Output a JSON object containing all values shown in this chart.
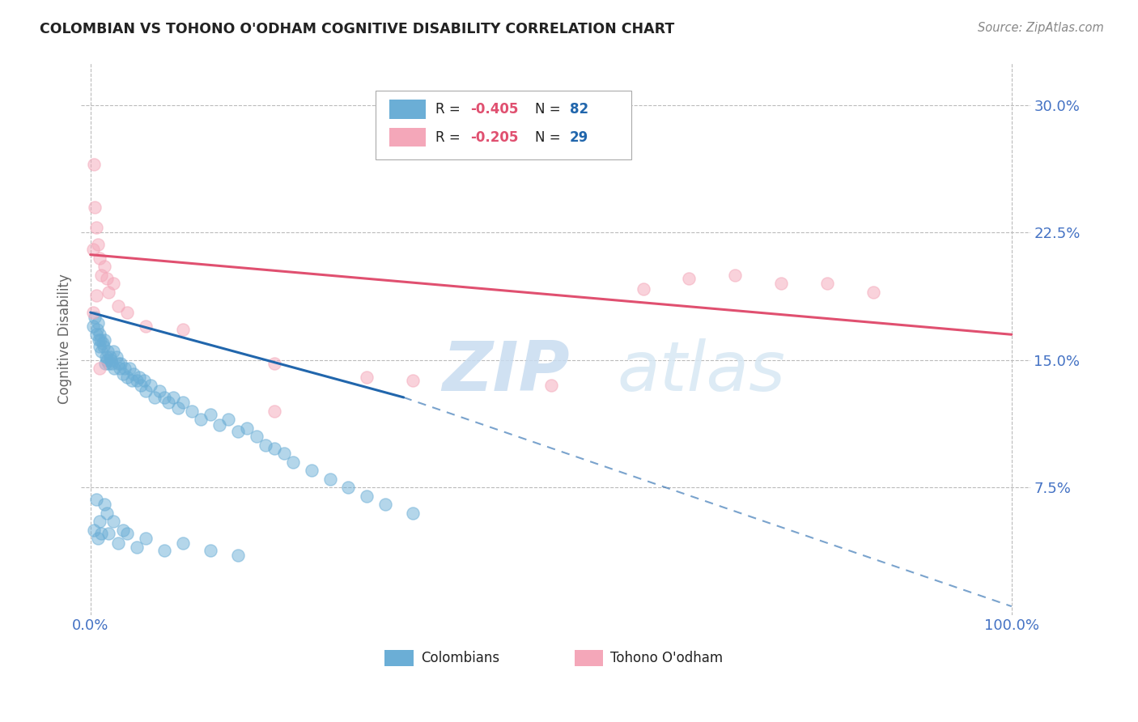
{
  "title": "COLOMBIAN VS TOHONO O'ODHAM COGNITIVE DISABILITY CORRELATION CHART",
  "source": "Source: ZipAtlas.com",
  "ylabel": "Cognitive Disability",
  "x_tick_labels": [
    "0.0%",
    "100.0%"
  ],
  "y_ticks": [
    0.075,
    0.15,
    0.225,
    0.3
  ],
  "y_tick_labels": [
    "7.5%",
    "15.0%",
    "22.5%",
    "30.0%"
  ],
  "blue_color": "#6BAED6",
  "pink_color": "#F4A7B9",
  "trend_blue": "#2166AC",
  "trend_pink": "#E05070",
  "background": "#FFFFFF",
  "grid_color": "#BBBBBB",
  "title_color": "#222222",
  "axis_label_color": "#4472C4",
  "r1": "-0.405",
  "n1": "82",
  "r2": "-0.205",
  "n2": "29",
  "r_color": "#E05070",
  "n_color": "#2166AC",
  "blue_x": [
    0.003,
    0.005,
    0.006,
    0.007,
    0.008,
    0.009,
    0.01,
    0.01,
    0.011,
    0.012,
    0.013,
    0.014,
    0.015,
    0.016,
    0.017,
    0.018,
    0.019,
    0.02,
    0.021,
    0.022,
    0.023,
    0.025,
    0.026,
    0.028,
    0.03,
    0.032,
    0.033,
    0.035,
    0.037,
    0.04,
    0.042,
    0.045,
    0.047,
    0.05,
    0.053,
    0.055,
    0.058,
    0.06,
    0.065,
    0.07,
    0.075,
    0.08,
    0.085,
    0.09,
    0.095,
    0.1,
    0.11,
    0.12,
    0.13,
    0.14,
    0.15,
    0.16,
    0.17,
    0.18,
    0.19,
    0.2,
    0.21,
    0.22,
    0.24,
    0.26,
    0.28,
    0.3,
    0.32,
    0.35,
    0.004,
    0.006,
    0.008,
    0.01,
    0.012,
    0.015,
    0.018,
    0.02,
    0.025,
    0.03,
    0.035,
    0.04,
    0.05,
    0.06,
    0.08,
    0.1,
    0.13,
    0.16
  ],
  "blue_y": [
    0.17,
    0.175,
    0.165,
    0.168,
    0.172,
    0.162,
    0.158,
    0.165,
    0.162,
    0.155,
    0.16,
    0.158,
    0.162,
    0.148,
    0.152,
    0.15,
    0.155,
    0.148,
    0.152,
    0.15,
    0.148,
    0.155,
    0.145,
    0.152,
    0.148,
    0.145,
    0.148,
    0.142,
    0.145,
    0.14,
    0.145,
    0.138,
    0.142,
    0.138,
    0.14,
    0.135,
    0.138,
    0.132,
    0.135,
    0.128,
    0.132,
    0.128,
    0.125,
    0.128,
    0.122,
    0.125,
    0.12,
    0.115,
    0.118,
    0.112,
    0.115,
    0.108,
    0.11,
    0.105,
    0.1,
    0.098,
    0.095,
    0.09,
    0.085,
    0.08,
    0.075,
    0.07,
    0.065,
    0.06,
    0.05,
    0.068,
    0.045,
    0.055,
    0.048,
    0.065,
    0.06,
    0.048,
    0.055,
    0.042,
    0.05,
    0.048,
    0.04,
    0.045,
    0.038,
    0.042,
    0.038,
    0.035
  ],
  "pink_x": [
    0.003,
    0.004,
    0.005,
    0.006,
    0.008,
    0.01,
    0.012,
    0.015,
    0.018,
    0.02,
    0.025,
    0.03,
    0.04,
    0.06,
    0.1,
    0.2,
    0.3,
    0.35,
    0.5,
    0.6,
    0.65,
    0.7,
    0.75,
    0.8,
    0.85,
    0.003,
    0.006,
    0.01,
    0.2
  ],
  "pink_y": [
    0.215,
    0.265,
    0.24,
    0.228,
    0.218,
    0.21,
    0.2,
    0.205,
    0.198,
    0.19,
    0.195,
    0.182,
    0.178,
    0.17,
    0.168,
    0.148,
    0.14,
    0.138,
    0.135,
    0.192,
    0.198,
    0.2,
    0.195,
    0.195,
    0.19,
    0.178,
    0.188,
    0.145,
    0.12
  ],
  "blue_trend_x1": 0.0,
  "blue_trend_y1": 0.178,
  "blue_trend_x2_solid": 0.34,
  "blue_trend_y2_solid": 0.128,
  "blue_trend_x2_dash": 1.0,
  "blue_trend_y2_dash": 0.005,
  "pink_trend_x1": 0.0,
  "pink_trend_y1": 0.212,
  "pink_trend_x2": 1.0,
  "pink_trend_y2": 0.165,
  "ylim": [
    0.0,
    0.325
  ],
  "xlim": [
    -0.01,
    1.02
  ]
}
